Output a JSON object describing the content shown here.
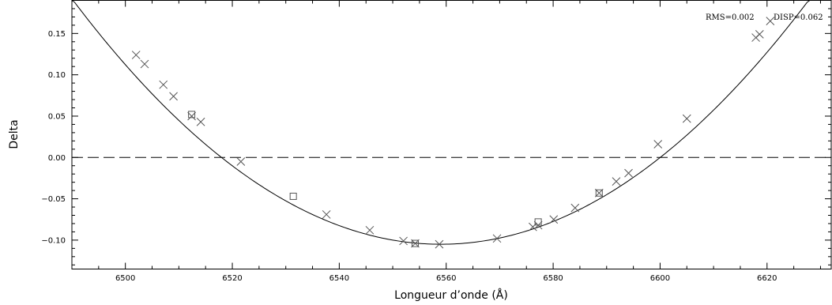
{
  "chart_data": {
    "type": "scatter",
    "title": "",
    "xlabel": "Longueur d’onde (Å)",
    "ylabel": "Delta",
    "xlim": [
      6490,
      6632
    ],
    "ylim": [
      -0.135,
      0.19
    ],
    "xticks": [
      6500,
      6520,
      6540,
      6560,
      6580,
      6600,
      6620
    ],
    "yticks": [
      -0.1,
      -0.05,
      0.0,
      0.05,
      0.1,
      0.15
    ],
    "xtick_labels": [
      "6500",
      "6520",
      "6540",
      "6560",
      "6580",
      "6600",
      "6620"
    ],
    "ytick_labels": [
      "−0.10",
      "−0.05",
      "0.00",
      "0.05",
      "0.10",
      "0.15"
    ],
    "reference_line": {
      "y": 0.0,
      "style": "dashed"
    },
    "fit_curve": {
      "type": "polynomial",
      "coefficients": {
        "x0": 6559,
        "ymin": -0.105,
        "k": 6.24e-05
      }
    },
    "annotations": {
      "rms": "RMS=0.002",
      "disp": "DISP=0.062"
    },
    "series": [
      {
        "marker": "x",
        "points": [
          [
            6502.0,
            0.124
          ],
          [
            6503.6,
            0.113
          ],
          [
            6507.1,
            0.088
          ],
          [
            6509.0,
            0.074
          ],
          [
            6512.4,
            0.05
          ],
          [
            6514.1,
            0.043
          ],
          [
            6521.6,
            -0.005
          ],
          [
            6537.6,
            -0.069
          ],
          [
            6545.7,
            -0.088
          ],
          [
            6552.0,
            -0.101
          ],
          [
            6554.2,
            -0.104
          ],
          [
            6558.7,
            -0.105
          ],
          [
            6569.5,
            -0.098
          ],
          [
            6576.2,
            -0.084
          ],
          [
            6577.2,
            -0.082
          ],
          [
            6580.1,
            -0.075
          ],
          [
            6584.1,
            -0.061
          ],
          [
            6588.6,
            -0.043
          ],
          [
            6591.8,
            -0.029
          ],
          [
            6594.1,
            -0.019
          ],
          [
            6599.6,
            0.016
          ],
          [
            6605.0,
            0.047
          ],
          [
            6617.9,
            0.145
          ],
          [
            6618.6,
            0.149
          ],
          [
            6620.6,
            0.165
          ]
        ]
      },
      {
        "marker": "square",
        "points": [
          [
            6512.4,
            0.052
          ],
          [
            6531.4,
            -0.047
          ],
          [
            6554.2,
            -0.104
          ],
          [
            6577.2,
            -0.078
          ],
          [
            6588.6,
            -0.043
          ]
        ]
      }
    ]
  }
}
